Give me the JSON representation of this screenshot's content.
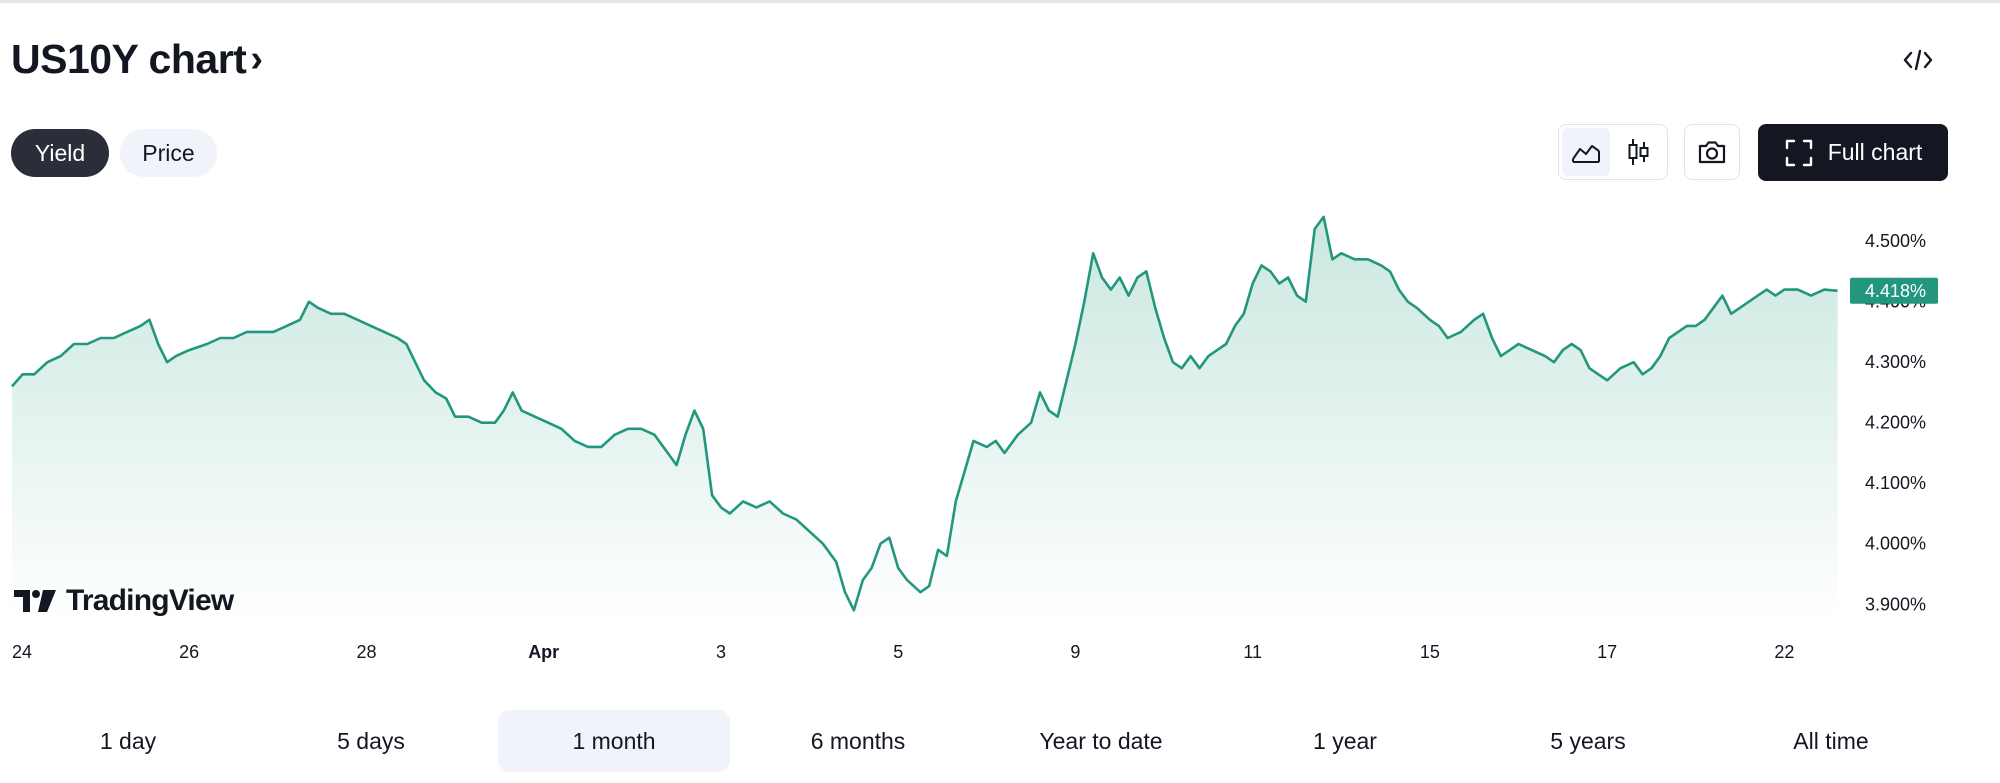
{
  "header": {
    "title": "US10Y chart",
    "title_chevron": "›",
    "embed_icon": "code-icon"
  },
  "modes": [
    {
      "label": "Yield",
      "active": true
    },
    {
      "label": "Price",
      "active": false
    }
  ],
  "toolbar": {
    "area_icon": "area-chart-icon",
    "candles_icon": "candlestick-icon",
    "camera_icon": "camera-icon",
    "full_chart_label": "Full chart",
    "fullscreen_icon": "fullscreen-icon"
  },
  "colors": {
    "line": "#22977e",
    "fill_top": "#cde9e1",
    "label_bg": "#22977e",
    "active_pill": "#2a2e39",
    "full_button": "#131722"
  },
  "logo": {
    "text": "TradingView",
    "icon": "tradingview-logo-icon"
  },
  "chart_data": {
    "type": "area",
    "title": "",
    "xlabel": "",
    "ylabel": "",
    "ylim": [
      3.874,
      4.568
    ],
    "y_ticks": [
      "4.500%",
      "4.400%",
      "4.300%",
      "4.200%",
      "4.100%",
      "4.000%",
      "3.900%"
    ],
    "y_tick_values": [
      4.5,
      4.4,
      4.3,
      4.2,
      4.1,
      4.0,
      3.9
    ],
    "x_ticks": [
      {
        "label": "24",
        "x": 0,
        "bold": false
      },
      {
        "label": "26",
        "x": 2,
        "bold": false
      },
      {
        "label": "28",
        "x": 4,
        "bold": false
      },
      {
        "label": "Apr",
        "x": 6,
        "bold": true
      },
      {
        "label": "3",
        "x": 8,
        "bold": false
      },
      {
        "label": "5",
        "x": 10,
        "bold": false
      },
      {
        "label": "9",
        "x": 12,
        "bold": false
      },
      {
        "label": "11",
        "x": 14,
        "bold": false
      },
      {
        "label": "15",
        "x": 16,
        "bold": false
      },
      {
        "label": "17",
        "x": 18,
        "bold": false
      },
      {
        "label": "22",
        "x": 20,
        "bold": false
      }
    ],
    "x_range": [
      0,
      20.65
    ],
    "last_value_label": "4.418%",
    "series": [
      {
        "points": [
          [
            0.0,
            4.26
          ],
          [
            0.12,
            4.28
          ],
          [
            0.25,
            4.28
          ],
          [
            0.4,
            4.3
          ],
          [
            0.55,
            4.31
          ],
          [
            0.7,
            4.33
          ],
          [
            0.85,
            4.33
          ],
          [
            1.0,
            4.34
          ],
          [
            1.15,
            4.34
          ],
          [
            1.3,
            4.35
          ],
          [
            1.45,
            4.36
          ],
          [
            1.55,
            4.37
          ],
          [
            1.65,
            4.33
          ],
          [
            1.75,
            4.3
          ],
          [
            1.85,
            4.31
          ],
          [
            2.0,
            4.32
          ],
          [
            2.2,
            4.33
          ],
          [
            2.35,
            4.34
          ],
          [
            2.5,
            4.34
          ],
          [
            2.65,
            4.35
          ],
          [
            2.8,
            4.35
          ],
          [
            2.95,
            4.35
          ],
          [
            3.1,
            4.36
          ],
          [
            3.25,
            4.37
          ],
          [
            3.35,
            4.4
          ],
          [
            3.45,
            4.39
          ],
          [
            3.6,
            4.38
          ],
          [
            3.75,
            4.38
          ],
          [
            3.9,
            4.37
          ],
          [
            4.05,
            4.36
          ],
          [
            4.2,
            4.35
          ],
          [
            4.35,
            4.34
          ],
          [
            4.45,
            4.33
          ],
          [
            4.55,
            4.3
          ],
          [
            4.65,
            4.27
          ],
          [
            4.78,
            4.25
          ],
          [
            4.9,
            4.24
          ],
          [
            5.0,
            4.21
          ],
          [
            5.15,
            4.21
          ],
          [
            5.3,
            4.2
          ],
          [
            5.45,
            4.2
          ],
          [
            5.55,
            4.22
          ],
          [
            5.65,
            4.25
          ],
          [
            5.75,
            4.22
          ],
          [
            5.9,
            4.21
          ],
          [
            6.05,
            4.2
          ],
          [
            6.2,
            4.19
          ],
          [
            6.35,
            4.17
          ],
          [
            6.5,
            4.16
          ],
          [
            6.65,
            4.16
          ],
          [
            6.8,
            4.18
          ],
          [
            6.95,
            4.19
          ],
          [
            7.1,
            4.19
          ],
          [
            7.25,
            4.18
          ],
          [
            7.4,
            4.15
          ],
          [
            7.5,
            4.13
          ],
          [
            7.6,
            4.18
          ],
          [
            7.7,
            4.22
          ],
          [
            7.8,
            4.19
          ],
          [
            7.9,
            4.08
          ],
          [
            8.0,
            4.06
          ],
          [
            8.1,
            4.05
          ],
          [
            8.25,
            4.07
          ],
          [
            8.4,
            4.06
          ],
          [
            8.55,
            4.07
          ],
          [
            8.7,
            4.05
          ],
          [
            8.85,
            4.04
          ],
          [
            9.0,
            4.02
          ],
          [
            9.15,
            4.0
          ],
          [
            9.3,
            3.97
          ],
          [
            9.4,
            3.92
          ],
          [
            9.5,
            3.89
          ],
          [
            9.6,
            3.94
          ],
          [
            9.7,
            3.96
          ],
          [
            9.8,
            4.0
          ],
          [
            9.9,
            4.01
          ],
          [
            10.0,
            3.96
          ],
          [
            10.1,
            3.94
          ],
          [
            10.25,
            3.92
          ],
          [
            10.35,
            3.93
          ],
          [
            10.45,
            3.99
          ],
          [
            10.55,
            3.98
          ],
          [
            10.65,
            4.07
          ],
          [
            10.75,
            4.12
          ],
          [
            10.85,
            4.17
          ],
          [
            11.0,
            4.16
          ],
          [
            11.1,
            4.17
          ],
          [
            11.2,
            4.15
          ],
          [
            11.35,
            4.18
          ],
          [
            11.5,
            4.2
          ],
          [
            11.6,
            4.25
          ],
          [
            11.7,
            4.22
          ],
          [
            11.8,
            4.21
          ],
          [
            11.9,
            4.27
          ],
          [
            12.0,
            4.33
          ],
          [
            12.1,
            4.4
          ],
          [
            12.2,
            4.48
          ],
          [
            12.3,
            4.44
          ],
          [
            12.4,
            4.42
          ],
          [
            12.5,
            4.44
          ],
          [
            12.6,
            4.41
          ],
          [
            12.7,
            4.44
          ],
          [
            12.8,
            4.45
          ],
          [
            12.9,
            4.39
          ],
          [
            13.0,
            4.34
          ],
          [
            13.1,
            4.3
          ],
          [
            13.2,
            4.29
          ],
          [
            13.3,
            4.31
          ],
          [
            13.4,
            4.29
          ],
          [
            13.5,
            4.31
          ],
          [
            13.6,
            4.32
          ],
          [
            13.7,
            4.33
          ],
          [
            13.8,
            4.36
          ],
          [
            13.9,
            4.38
          ],
          [
            14.0,
            4.43
          ],
          [
            14.1,
            4.46
          ],
          [
            14.2,
            4.45
          ],
          [
            14.3,
            4.43
          ],
          [
            14.4,
            4.44
          ],
          [
            14.5,
            4.41
          ],
          [
            14.6,
            4.4
          ],
          [
            14.7,
            4.52
          ],
          [
            14.8,
            4.54
          ],
          [
            14.9,
            4.47
          ],
          [
            15.0,
            4.48
          ],
          [
            15.15,
            4.47
          ],
          [
            15.3,
            4.47
          ],
          [
            15.45,
            4.46
          ],
          [
            15.55,
            4.45
          ],
          [
            15.65,
            4.42
          ],
          [
            15.75,
            4.4
          ],
          [
            15.85,
            4.39
          ],
          [
            16.0,
            4.37
          ],
          [
            16.1,
            4.36
          ],
          [
            16.2,
            4.34
          ],
          [
            16.35,
            4.35
          ],
          [
            16.5,
            4.37
          ],
          [
            16.6,
            4.38
          ],
          [
            16.7,
            4.34
          ],
          [
            16.8,
            4.31
          ],
          [
            16.9,
            4.32
          ],
          [
            17.0,
            4.33
          ],
          [
            17.15,
            4.32
          ],
          [
            17.3,
            4.31
          ],
          [
            17.4,
            4.3
          ],
          [
            17.5,
            4.32
          ],
          [
            17.6,
            4.33
          ],
          [
            17.7,
            4.32
          ],
          [
            17.8,
            4.29
          ],
          [
            17.9,
            4.28
          ],
          [
            18.0,
            4.27
          ],
          [
            18.15,
            4.29
          ],
          [
            18.3,
            4.3
          ],
          [
            18.4,
            4.28
          ],
          [
            18.5,
            4.29
          ],
          [
            18.6,
            4.31
          ],
          [
            18.7,
            4.34
          ],
          [
            18.8,
            4.35
          ],
          [
            18.9,
            4.36
          ],
          [
            19.0,
            4.36
          ],
          [
            19.1,
            4.37
          ],
          [
            19.2,
            4.39
          ],
          [
            19.3,
            4.41
          ],
          [
            19.4,
            4.38
          ],
          [
            19.5,
            4.39
          ],
          [
            19.6,
            4.4
          ],
          [
            19.7,
            4.41
          ],
          [
            19.8,
            4.42
          ],
          [
            19.9,
            4.41
          ],
          [
            20.0,
            4.42
          ],
          [
            20.15,
            4.42
          ],
          [
            20.3,
            4.41
          ],
          [
            20.45,
            4.42
          ],
          [
            20.6,
            4.418
          ]
        ]
      }
    ],
    "grid": false,
    "legend": "none"
  },
  "ranges": [
    {
      "label": "1 day",
      "active": false
    },
    {
      "label": "5 days",
      "active": false
    },
    {
      "label": "1 month",
      "active": true
    },
    {
      "label": "6 months",
      "active": false
    },
    {
      "label": "Year to date",
      "active": false
    },
    {
      "label": "1 year",
      "active": false
    },
    {
      "label": "5 years",
      "active": false
    },
    {
      "label": "All time",
      "active": false
    }
  ]
}
